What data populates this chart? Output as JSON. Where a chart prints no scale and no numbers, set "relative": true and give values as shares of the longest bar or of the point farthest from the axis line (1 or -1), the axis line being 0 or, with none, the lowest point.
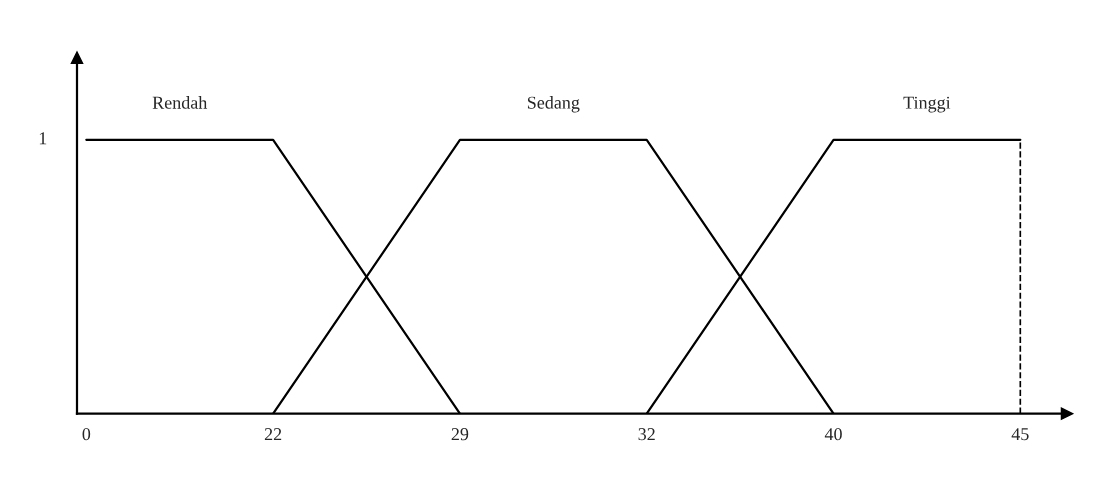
{
  "chart_data": {
    "type": "line",
    "relative": true,
    "categories": [
      "0",
      "22",
      "29",
      "32",
      "40",
      "45"
    ],
    "series": [
      {
        "name": "Rendah",
        "color": "#000000",
        "values": [
          1,
          1,
          0,
          null,
          null,
          null
        ]
      },
      {
        "name": "Sedang",
        "color": "#000000",
        "values": [
          null,
          0,
          1,
          1,
          0,
          null
        ]
      },
      {
        "name": "Tinggi",
        "color": "#000000",
        "values": [
          null,
          null,
          null,
          0,
          1,
          1
        ]
      }
    ],
    "annotations": [
      "1"
    ],
    "ref_lines": [
      {
        "axis": "x",
        "value": "45",
        "line_style": "dashed",
        "color": "#000000"
      }
    ],
    "marker": "none",
    "line_style": "solid",
    "grid": false,
    "legend": false
  }
}
